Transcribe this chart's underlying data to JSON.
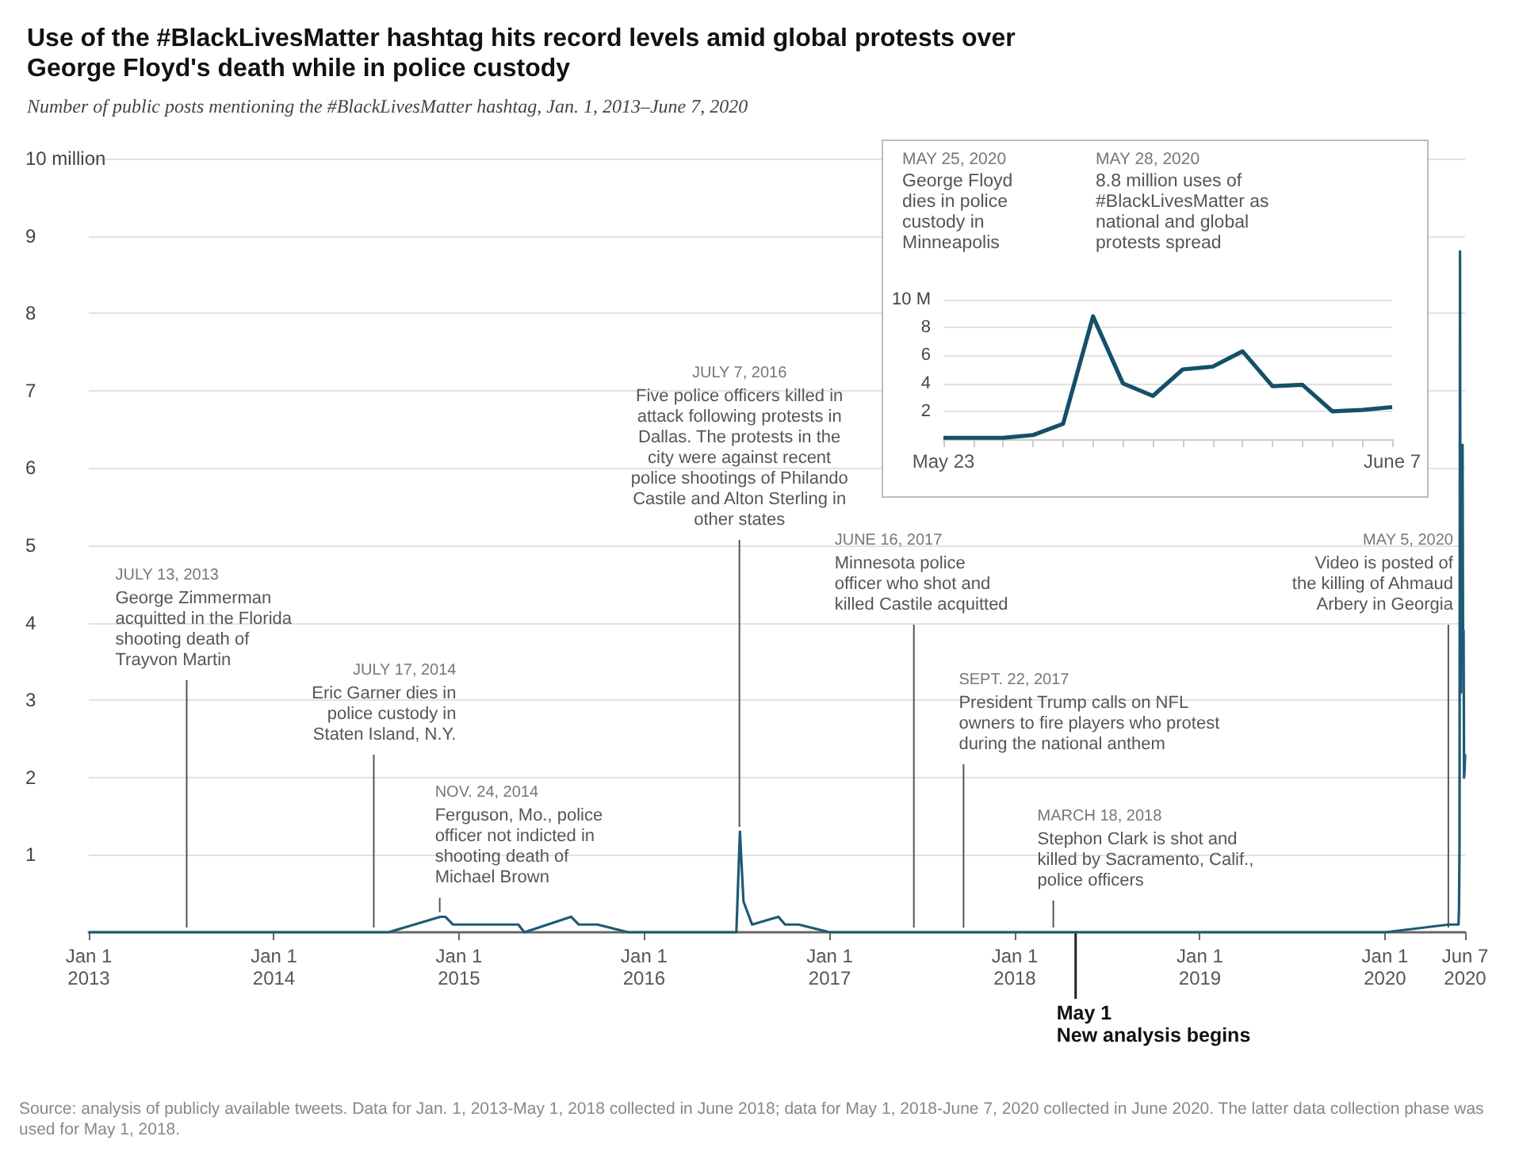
{
  "chart_data": [
    {
      "type": "line",
      "title": "Use of the #BlackLivesMatter hashtag hits record levels amid global protests over\nGeorge Floyd's death while in police custody",
      "subtitle": "Number of public posts mentioning the #BlackLivesMatter hashtag, Jan. 1, 2013–June 7, 2020",
      "x": [
        "2013-01-01",
        "2013-07-14",
        "2014-07-18",
        "2014-08-15",
        "2014-11-25",
        "2014-12-05",
        "2014-12-20",
        "2015-01-15",
        "2015-04-28",
        "2015-05-10",
        "2015-08-10",
        "2015-08-25",
        "2015-10-01",
        "2015-12-01",
        "2016-03-01",
        "2016-07-01",
        "2016-07-08",
        "2016-07-15",
        "2016-08-01",
        "2016-09-22",
        "2016-10-05",
        "2016-11-01",
        "2017-01-01",
        "2017-06-17",
        "2017-09-25",
        "2018-03-20",
        "2018-05-01",
        "2019-01-01",
        "2019-07-01",
        "2020-01-01",
        "2020-05-06",
        "2020-05-25",
        "2020-05-26",
        "2020-05-27",
        "2020-05-28",
        "2020-05-29",
        "2020-05-30",
        "2020-05-31",
        "2020-06-01",
        "2020-06-02",
        "2020-06-03",
        "2020-06-04",
        "2020-06-05",
        "2020-06-06",
        "2020-06-07"
      ],
      "series": [
        {
          "color": "#1d5a75",
          "values": [
            0,
            0,
            0,
            0,
            0.2,
            0.2,
            0.1,
            0.1,
            0.1,
            0,
            0.2,
            0.1,
            0.1,
            0,
            0,
            0,
            1.3,
            0.4,
            0.1,
            0.2,
            0.1,
            0.1,
            0,
            0,
            0,
            0,
            0,
            0,
            0,
            0,
            0.1,
            0.1,
            0.3,
            1.1,
            8.8,
            4.0,
            3.1,
            5.0,
            5.2,
            6.3,
            3.8,
            3.9,
            2.0,
            2.1,
            2.3
          ]
        }
      ],
      "xlim": [
        "2013-01-01",
        "2020-06-07"
      ],
      "xticks": [
        {
          "value": "2013-01-01",
          "label": "Jan 1\n2013"
        },
        {
          "value": "2014-01-01",
          "label": "Jan 1\n2014"
        },
        {
          "value": "2015-01-01",
          "label": "Jan 1\n2015"
        },
        {
          "value": "2016-01-01",
          "label": "Jan 1\n2016"
        },
        {
          "value": "2017-01-01",
          "label": "Jan 1\n2017"
        },
        {
          "value": "2018-01-01",
          "label": "Jan 1\n2018"
        },
        {
          "value": "2019-01-01",
          "label": "Jan 1\n2019"
        },
        {
          "value": "2020-01-01",
          "label": "Jan 1\n2020"
        },
        {
          "value": "2020-06-07",
          "label": "Jun 7\n2020"
        }
      ],
      "ylim": [
        0,
        10
      ],
      "yticks": [
        1,
        2,
        3,
        4,
        5,
        6,
        7,
        8,
        9,
        {
          "value": 10,
          "label": "10 million"
        }
      ],
      "grid": "y",
      "marker": "none",
      "ref_lines": [
        {
          "axis": "x",
          "value": "2018-05-01",
          "label": "May 1\nNew analysis begins"
        }
      ],
      "annotations": [
        {
          "text": "JULY 13, 2013\nGeorge Zimmerman\nacquitted in the Florida\nshooting death of\nTrayvon Martin",
          "x": "2013-07-13",
          "y": 0
        },
        {
          "text": "JULY 17, 2014\nEric Garner dies in\npolice custody in\nStaten Island, N.Y.",
          "x": "2014-07-17",
          "y": 0
        },
        {
          "text": "NOV. 24, 2014\nFerguson, Mo., police\nofficer not indicted in\nshooting death of\nMichael Brown",
          "x": "2014-11-24",
          "y": 0.2
        },
        {
          "text": "JULY 7, 2016\nFive police officers killed in\nattack following protests in\nDallas. The protests in the\ncity were against recent\npolice shootings of Philando\nCastile and Alton Sterling in\nother states",
          "x": "2016-07-07",
          "y": 1.3
        },
        {
          "text": "JUNE 16, 2017\nMinnesota police\nofficer who shot and\nkilled Castile acquitted",
          "x": "2017-06-16",
          "y": 0
        },
        {
          "text": "SEPT. 22, 2017\nPresident Trump calls on NFL\nowners to fire players who protest\nduring the national anthem",
          "x": "2017-09-22",
          "y": 0
        },
        {
          "text": "MARCH 18, 2018\nStephon Clark is shot and\nkilled by Sacramento, Calif.,\npolice officers",
          "x": "2018-03-18",
          "y": 0
        },
        {
          "text": "MAY 5, 2020\nVideo is posted of\nthe killing of Ahmaud\nArbery in Georgia",
          "x": "2020-05-05",
          "y": 0
        },
        "Source: analysis of publicly available tweets. Data for Jan. 1, 2013-May 1, 2018 collected in June 2018; data for May 1, 2018-June 7, 2020 collected in June 2020. The latter data collection phase was used for May 1, 2018."
      ]
    },
    {
      "type": "line",
      "categories": [
        "May 23",
        null,
        null,
        null,
        null,
        null,
        null,
        null,
        null,
        null,
        null,
        null,
        null,
        null,
        null,
        "June 7"
      ],
      "series": [
        {
          "color": "#14506a",
          "values": [
            0.1,
            0.1,
            0.1,
            0.3,
            1.1,
            8.8,
            4.0,
            3.1,
            5.0,
            5.2,
            6.3,
            3.8,
            3.9,
            2.0,
            2.1,
            2.3
          ]
        }
      ],
      "ylim": [
        0,
        10
      ],
      "yticks": [
        2,
        4,
        6,
        8,
        {
          "value": 10,
          "label": "10 M"
        }
      ],
      "grid": "y",
      "marker": "none",
      "annotations": [
        "MAY 25, 2020\nGeorge Floyd\ndies in police\ncustody in\nMinneapolis",
        "MAY 28, 2020\n8.8 million uses of\n#BlackLivesMatter as\nnational and global\nprotests spread"
      ]
    }
  ]
}
